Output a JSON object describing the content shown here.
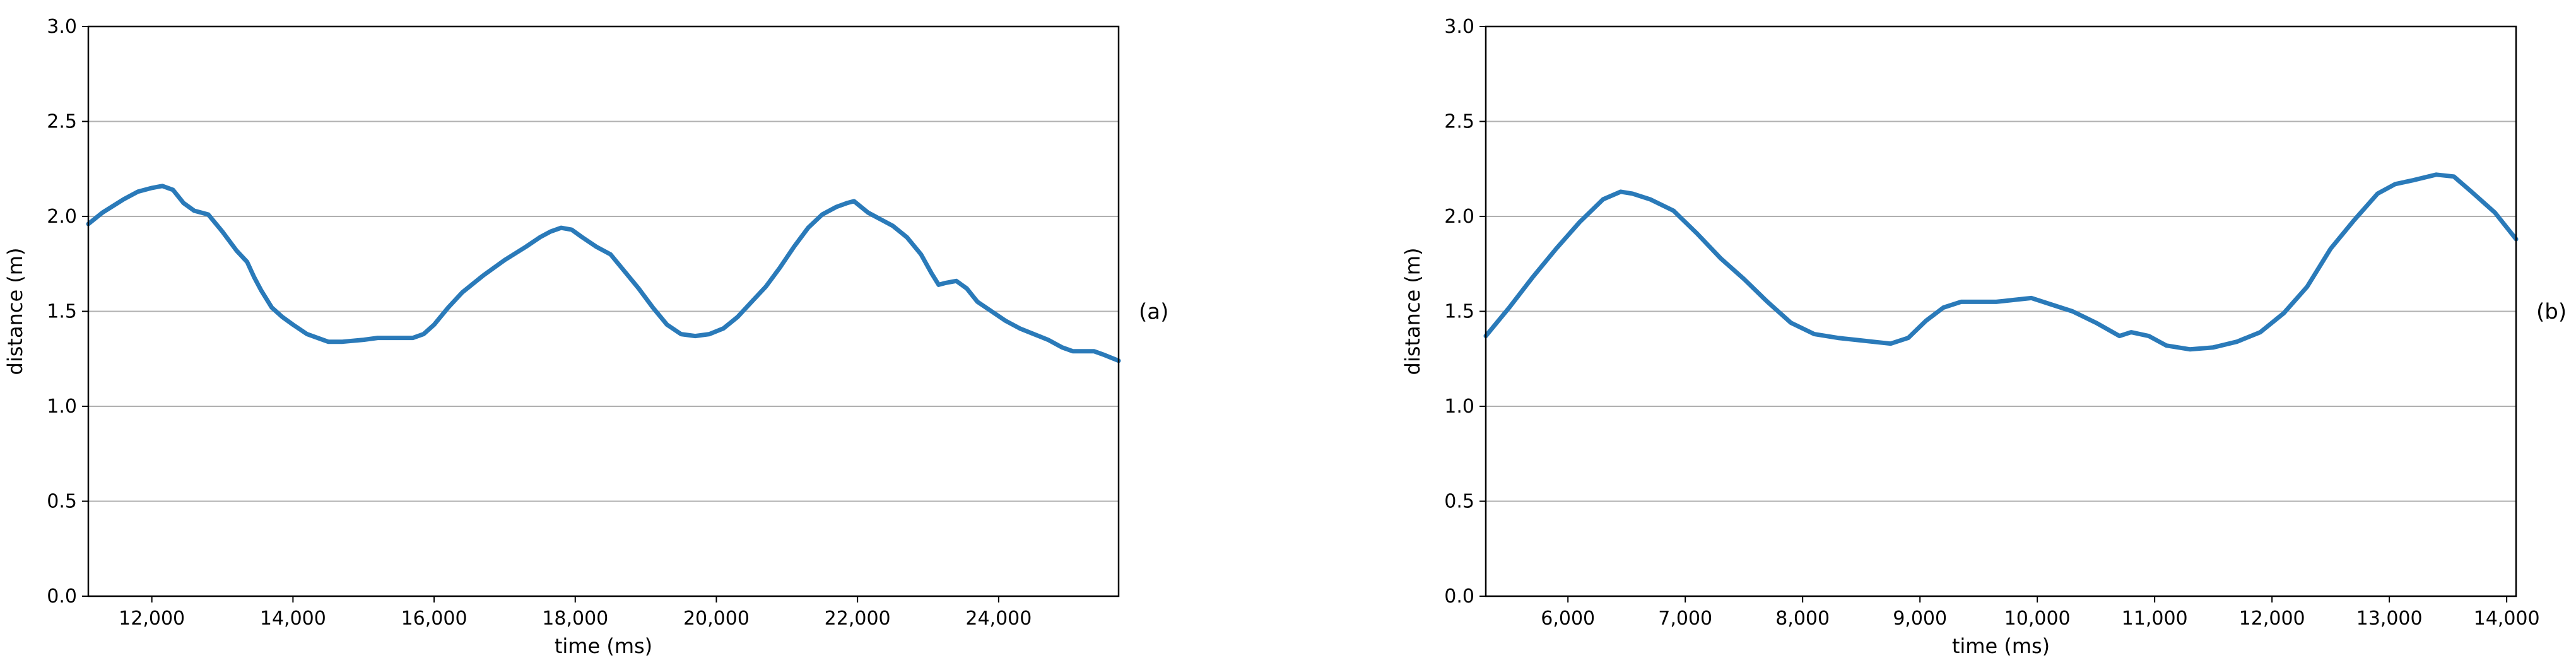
{
  "chart_data": [
    {
      "type": "line",
      "panel_label": "(a)",
      "xlabel": "time (ms)",
      "ylabel": "distance (m)",
      "xlim": [
        11100,
        25700
      ],
      "ylim": [
        0.0,
        3.0
      ],
      "x_ticks": [
        12000,
        14000,
        16000,
        18000,
        20000,
        22000,
        24000
      ],
      "x_tick_labels": [
        "12,000",
        "14,000",
        "16,000",
        "18,000",
        "20,000",
        "22,000",
        "24,000"
      ],
      "y_ticks": [
        0.0,
        0.5,
        1.0,
        1.5,
        2.0,
        2.5,
        3.0
      ],
      "y_tick_labels": [
        "0.0",
        "0.5",
        "1.0",
        "1.5",
        "2.0",
        "2.5",
        "3.0"
      ],
      "grid": "horizontal",
      "color": "#2a7ab9",
      "series": [
        {
          "x": [
            11100,
            11300,
            11600,
            11800,
            12000,
            12150,
            12300,
            12450,
            12600,
            12800,
            13000,
            13200,
            13350,
            13450,
            13550,
            13700,
            13850,
            14000,
            14200,
            14500,
            14700,
            15000,
            15200,
            15500,
            15700,
            15850,
            16000,
            16200,
            16400,
            16700,
            17000,
            17300,
            17500,
            17650,
            17800,
            17950,
            18100,
            18300,
            18500,
            18700,
            18900,
            19100,
            19300,
            19500,
            19700,
            19900,
            20100,
            20300,
            20500,
            20700,
            20900,
            21100,
            21300,
            21500,
            21700,
            21850,
            21950,
            22050,
            22150,
            22300,
            22500,
            22700,
            22900,
            23050,
            23150,
            23250,
            23400,
            23550,
            23700,
            23900,
            24100,
            24300,
            24500,
            24700,
            24900,
            25050,
            25200,
            25350,
            25500,
            25700
          ],
          "y": [
            1.96,
            2.02,
            2.09,
            2.13,
            2.15,
            2.16,
            2.14,
            2.07,
            2.03,
            2.01,
            1.92,
            1.82,
            1.76,
            1.68,
            1.61,
            1.52,
            1.47,
            1.43,
            1.38,
            1.34,
            1.34,
            1.35,
            1.36,
            1.36,
            1.36,
            1.38,
            1.43,
            1.52,
            1.6,
            1.69,
            1.77,
            1.84,
            1.89,
            1.92,
            1.94,
            1.93,
            1.89,
            1.84,
            1.8,
            1.71,
            1.62,
            1.52,
            1.43,
            1.38,
            1.37,
            1.38,
            1.41,
            1.47,
            1.55,
            1.63,
            1.73,
            1.84,
            1.94,
            2.01,
            2.05,
            2.07,
            2.08,
            2.05,
            2.02,
            1.99,
            1.95,
            1.89,
            1.8,
            1.7,
            1.64,
            1.65,
            1.66,
            1.62,
            1.55,
            1.5,
            1.45,
            1.41,
            1.38,
            1.35,
            1.31,
            1.29,
            1.29,
            1.29,
            1.27,
            1.24
          ]
        }
      ]
    },
    {
      "type": "line",
      "panel_label": "(b)",
      "xlabel": "time (ms)",
      "ylabel": "distance (m)",
      "xlim": [
        5300,
        14080
      ],
      "ylim": [
        0.0,
        3.0
      ],
      "x_ticks": [
        6000,
        7000,
        8000,
        9000,
        10000,
        11000,
        12000,
        13000,
        14000
      ],
      "x_tick_labels": [
        "6,000",
        "7,000",
        "8,000",
        "9,000",
        "10,000",
        "11,000",
        "12,000",
        "13,000",
        "14,000"
      ],
      "y_ticks": [
        0.0,
        0.5,
        1.0,
        1.5,
        2.0,
        2.5,
        3.0
      ],
      "y_tick_labels": [
        "0.0",
        "0.5",
        "1.0",
        "1.5",
        "2.0",
        "2.5",
        "3.0"
      ],
      "grid": "horizontal",
      "color": "#2a7ab9",
      "series": [
        {
          "x": [
            5300,
            5500,
            5700,
            5900,
            6100,
            6300,
            6450,
            6550,
            6700,
            6900,
            7100,
            7300,
            7500,
            7700,
            7900,
            8100,
            8300,
            8450,
            8600,
            8750,
            8900,
            9050,
            9200,
            9350,
            9500,
            9650,
            9800,
            9950,
            10100,
            10300,
            10500,
            10700,
            10800,
            10950,
            11100,
            11300,
            11500,
            11700,
            11900,
            12100,
            12300,
            12500,
            12700,
            12900,
            13050,
            13200,
            13400,
            13550,
            13700,
            13900,
            14080
          ],
          "y": [
            1.37,
            1.52,
            1.68,
            1.83,
            1.97,
            2.09,
            2.13,
            2.12,
            2.09,
            2.03,
            1.91,
            1.78,
            1.67,
            1.55,
            1.44,
            1.38,
            1.36,
            1.35,
            1.34,
            1.33,
            1.36,
            1.45,
            1.52,
            1.55,
            1.55,
            1.55,
            1.56,
            1.57,
            1.54,
            1.5,
            1.44,
            1.37,
            1.39,
            1.37,
            1.32,
            1.3,
            1.31,
            1.34,
            1.39,
            1.49,
            1.63,
            1.83,
            1.98,
            2.12,
            2.17,
            2.19,
            2.22,
            2.21,
            2.13,
            2.02,
            1.88
          ]
        }
      ]
    }
  ]
}
